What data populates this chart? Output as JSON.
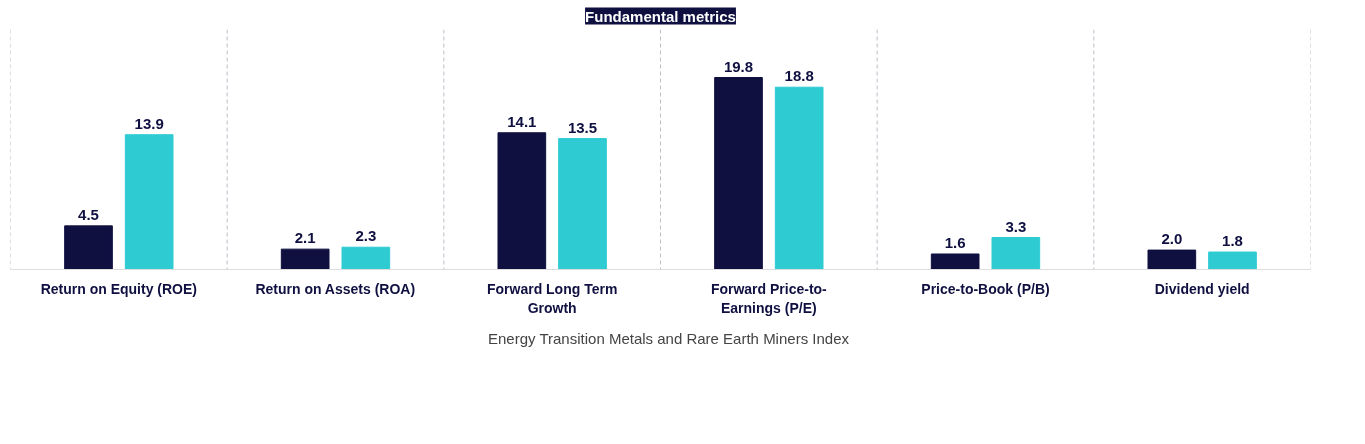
{
  "chart_data": {
    "type": "bar",
    "title": "Fundamental metrics",
    "categories": [
      "Return on Equity (ROE)",
      "Return on Assets (ROA)",
      "Forward Long Term Growth",
      "Forward Price-to-Earnings (P/E)",
      "Price-to-Book (P/B)",
      "Dividend yield"
    ],
    "series": [
      {
        "name": "Energy Transition Metals and Rare Earth Miners Index",
        "color": "#0f1040",
        "values": [
          4.5,
          2.1,
          14.1,
          19.8,
          1.6,
          2.0
        ],
        "value_labels": [
          "4.5",
          "2.1",
          "14.1",
          "19.8",
          "1.6",
          "2.0"
        ]
      },
      {
        "color": "#2ecbd3",
        "values": [
          13.9,
          2.3,
          13.5,
          18.8,
          3.3,
          1.8
        ],
        "value_labels": [
          "13.9",
          "2.3",
          "13.5",
          "18.8",
          "3.3",
          "1.8"
        ]
      }
    ],
    "grid": "x",
    "legend": "bottom",
    "tick_labels": "x"
  }
}
